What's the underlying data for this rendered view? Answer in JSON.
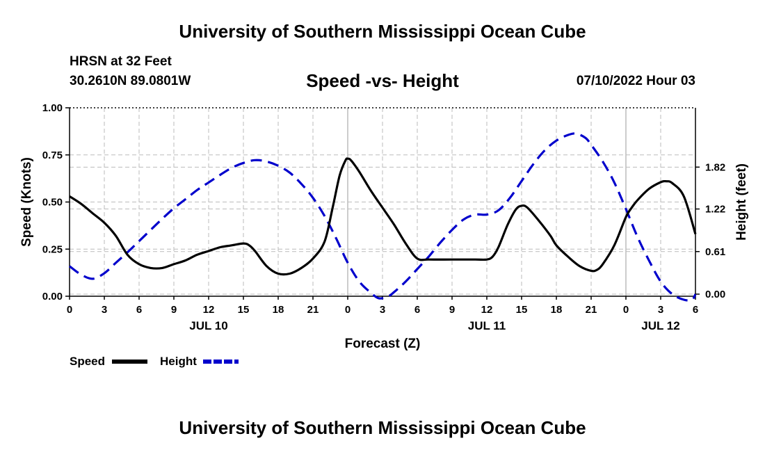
{
  "header": {
    "title": "University of Southern Mississippi Ocean Cube",
    "station": "HRSN at 32 Feet",
    "coords": "30.2610N  89.0801W",
    "subtitle": "Speed -vs- Height",
    "run_time": "07/10/2022 Hour 03"
  },
  "footer": {
    "title": "University of Southern Mississippi Ocean Cube"
  },
  "chart_data": {
    "type": "line",
    "title": "Speed -vs- Height",
    "xlabel": "Forecast (Z)",
    "ylabel_left": "Speed (Knots)",
    "ylabel_right": "Height (feet)",
    "x_range_hours": [
      0,
      54
    ],
    "x_tick_hours": [
      0,
      3,
      6,
      9,
      12,
      15,
      18,
      21,
      24,
      27,
      30,
      33,
      36,
      39,
      42,
      45,
      48,
      51,
      54
    ],
    "x_tick_labels": [
      "0",
      "3",
      "6",
      "9",
      "12",
      "15",
      "18",
      "21",
      "0",
      "3",
      "6",
      "9",
      "12",
      "15",
      "18",
      "21",
      "0",
      "3",
      "6"
    ],
    "date_labels": [
      {
        "label": "JUL 10",
        "hour": 12
      },
      {
        "label": "JUL 11",
        "hour": 36
      },
      {
        "label": "JUL 12",
        "hour": 51
      }
    ],
    "y_left": {
      "min": 0,
      "max": 1.0,
      "ticks": [
        0.0,
        0.25,
        0.5,
        0.75,
        1.0
      ],
      "tick_labels": [
        "0.00",
        "0.25",
        "0.50",
        "0.75",
        "1.00"
      ]
    },
    "y_right": {
      "min": -0.03,
      "max": 2.67,
      "ticks": [
        0.0,
        0.61,
        1.22,
        1.82
      ],
      "tick_labels": [
        "0.00",
        "0.61",
        "1.22",
        "1.82"
      ]
    },
    "grid": true,
    "series": [
      {
        "name": "Speed",
        "axis": "left",
        "color": "#000000",
        "dashed": false,
        "points": [
          [
            0,
            0.53
          ],
          [
            1,
            0.49
          ],
          [
            2,
            0.44
          ],
          [
            3,
            0.39
          ],
          [
            4,
            0.32
          ],
          [
            5,
            0.22
          ],
          [
            6,
            0.17
          ],
          [
            7,
            0.15
          ],
          [
            8,
            0.15
          ],
          [
            9,
            0.17
          ],
          [
            10,
            0.19
          ],
          [
            11,
            0.22
          ],
          [
            12,
            0.24
          ],
          [
            13,
            0.26
          ],
          [
            14,
            0.27
          ],
          [
            15,
            0.28
          ],
          [
            15.5,
            0.27
          ],
          [
            16,
            0.24
          ],
          [
            17,
            0.16
          ],
          [
            18,
            0.12
          ],
          [
            19,
            0.12
          ],
          [
            20,
            0.15
          ],
          [
            21,
            0.2
          ],
          [
            22,
            0.29
          ],
          [
            22.7,
            0.47
          ],
          [
            23.3,
            0.64
          ],
          [
            23.8,
            0.72
          ],
          [
            24,
            0.73
          ],
          [
            24.3,
            0.72
          ],
          [
            25,
            0.66
          ],
          [
            26,
            0.56
          ],
          [
            27,
            0.47
          ],
          [
            28,
            0.38
          ],
          [
            29,
            0.28
          ],
          [
            30,
            0.2
          ],
          [
            31,
            0.195
          ],
          [
            33,
            0.195
          ],
          [
            35,
            0.195
          ],
          [
            36,
            0.195
          ],
          [
            36.5,
            0.21
          ],
          [
            37,
            0.26
          ],
          [
            37.8,
            0.38
          ],
          [
            38.5,
            0.46
          ],
          [
            39,
            0.48
          ],
          [
            39.5,
            0.47
          ],
          [
            40.5,
            0.4
          ],
          [
            41.5,
            0.32
          ],
          [
            42,
            0.27
          ],
          [
            43,
            0.21
          ],
          [
            44,
            0.16
          ],
          [
            45,
            0.135
          ],
          [
            45.5,
            0.14
          ],
          [
            46,
            0.17
          ],
          [
            47,
            0.27
          ],
          [
            48,
            0.42
          ],
          [
            48.5,
            0.47
          ],
          [
            49,
            0.51
          ],
          [
            50,
            0.57
          ],
          [
            51,
            0.605
          ],
          [
            51.5,
            0.61
          ],
          [
            52,
            0.6
          ],
          [
            53,
            0.53
          ],
          [
            54,
            0.33
          ]
        ]
      },
      {
        "name": "Height",
        "axis": "right",
        "color": "#0000cc",
        "dashed": true,
        "points": [
          [
            0,
            0.4
          ],
          [
            1,
            0.28
          ],
          [
            2,
            0.22
          ],
          [
            3,
            0.3
          ],
          [
            4,
            0.45
          ],
          [
            5,
            0.6
          ],
          [
            6,
            0.76
          ],
          [
            7,
            0.92
          ],
          [
            8,
            1.08
          ],
          [
            9,
            1.23
          ],
          [
            10,
            1.36
          ],
          [
            11,
            1.49
          ],
          [
            12,
            1.6
          ],
          [
            13,
            1.71
          ],
          [
            14,
            1.81
          ],
          [
            15,
            1.88
          ],
          [
            16,
            1.92
          ],
          [
            17,
            1.9
          ],
          [
            18,
            1.84
          ],
          [
            19,
            1.74
          ],
          [
            20,
            1.58
          ],
          [
            21,
            1.38
          ],
          [
            22,
            1.12
          ],
          [
            23,
            0.8
          ],
          [
            24,
            0.45
          ],
          [
            25,
            0.18
          ],
          [
            26,
            0.02
          ],
          [
            26.7,
            -0.06
          ],
          [
            27.5,
            -0.03
          ],
          [
            28,
            0.03
          ],
          [
            29,
            0.18
          ],
          [
            30,
            0.36
          ],
          [
            31,
            0.54
          ],
          [
            32,
            0.74
          ],
          [
            33,
            0.92
          ],
          [
            34,
            1.07
          ],
          [
            35,
            1.14
          ],
          [
            36,
            1.14
          ],
          [
            37,
            1.2
          ],
          [
            38,
            1.38
          ],
          [
            39,
            1.62
          ],
          [
            40,
            1.86
          ],
          [
            41,
            2.06
          ],
          [
            42,
            2.2
          ],
          [
            43,
            2.28
          ],
          [
            43.7,
            2.3
          ],
          [
            44.5,
            2.24
          ],
          [
            45,
            2.14
          ],
          [
            46,
            1.9
          ],
          [
            47,
            1.6
          ],
          [
            48,
            1.22
          ],
          [
            49,
            0.82
          ],
          [
            50,
            0.48
          ],
          [
            51,
            0.18
          ],
          [
            52,
            0.0
          ],
          [
            53,
            -0.08
          ],
          [
            53.7,
            -0.08
          ],
          [
            54,
            0.0
          ]
        ]
      }
    ]
  },
  "legend": {
    "items": [
      {
        "label": "Speed",
        "color": "#000000",
        "dashed": false
      },
      {
        "label": "Height",
        "color": "#0000cc",
        "dashed": true
      }
    ]
  }
}
